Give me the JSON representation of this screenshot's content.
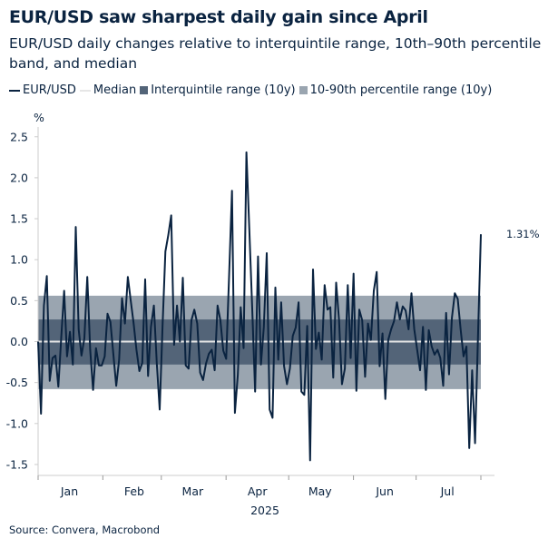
{
  "title": "EUR/USD saw sharpest daily gain since April",
  "subtitle": "EUR/USD daily changes relative to interquintile range, 10th–90th percentile band, and median",
  "source": "Source: Convera, Macrobond",
  "chart_data": {
    "type": "line",
    "unit_label": "%",
    "x_start": "2025-01-01",
    "x_end": "2025-08-01",
    "x_tick_labels": [
      "Jan",
      "Feb",
      "Mar",
      "Apr",
      "May",
      "Jun",
      "Jul"
    ],
    "x_year_label": "2025",
    "ylim": [
      -1.6,
      2.6
    ],
    "y_ticks": [
      -1.5,
      -1.0,
      -0.5,
      0.0,
      0.5,
      1.0,
      1.5,
      2.0,
      2.5
    ],
    "y_tick_labels": [
      "-1.5",
      "-1.0",
      "-0.5",
      "0.0",
      "0.5",
      "1.0",
      "1.5",
      "2.0",
      "2.5"
    ],
    "legend": [
      {
        "name": "EUR/USD",
        "color": "#0a2340",
        "kind": "line"
      },
      {
        "name": "Median",
        "color": "#e6e6e6",
        "kind": "line"
      },
      {
        "name": "Interquintile range (10y)",
        "color": "#536478",
        "kind": "box"
      },
      {
        "name": "10-90th percentile range (10y)",
        "color": "#9aa5b0",
        "kind": "box"
      }
    ],
    "legend_placement": "top",
    "median": 0.0,
    "interquintile_range": [
      -0.28,
      0.27
    ],
    "p10_p90_range": [
      -0.58,
      0.56
    ],
    "last_value_label": "1.31%",
    "series": [
      {
        "name": "EUR/USD",
        "color": "#0a2340",
        "values": [
          0,
          -0.88,
          0.44,
          0.8,
          -0.48,
          -0.2,
          -0.17,
          -0.55,
          0.05,
          0.62,
          -0.18,
          0.12,
          -0.28,
          1.4,
          0.15,
          -0.17,
          0.04,
          0.79,
          -0.1,
          -0.59,
          -0.08,
          -0.29,
          -0.29,
          -0.18,
          0.34,
          0.24,
          -0.15,
          -0.54,
          -0.22,
          0.53,
          0.22,
          0.79,
          0.5,
          0.22,
          -0.1,
          -0.36,
          -0.26,
          0.76,
          -0.42,
          0.18,
          0.44,
          -0.26,
          -0.83,
          0.2,
          1.1,
          1.3,
          1.54,
          -0.04,
          0.44,
          0,
          0.78,
          -0.29,
          -0.33,
          0.26,
          0.39,
          0.22,
          -0.38,
          -0.47,
          -0.27,
          -0.15,
          -0.1,
          -0.35,
          0.44,
          0.26,
          -0.11,
          -0.21,
          0.8,
          1.84,
          -0.87,
          -0.41,
          0.42,
          -0.08,
          2.31,
          1.37,
          0.4,
          -0.61,
          1.04,
          -0.28,
          0.18,
          1.08,
          -0.83,
          -0.93,
          0.66,
          -0.22,
          0.48,
          -0.3,
          -0.52,
          -0.33,
          0.07,
          0.17,
          0.48,
          -0.61,
          -0.65,
          0.19,
          -1.45,
          0.88,
          -0.09,
          0.11,
          -0.22,
          0.69,
          0.39,
          0.42,
          -0.44,
          0.72,
          0.26,
          -0.52,
          -0.33,
          0.69,
          -0.2,
          0.83,
          -0.6,
          0.39,
          0.26,
          -0.43,
          0.22,
          0.02,
          0.62,
          0.85,
          -0.3,
          0.1,
          -0.7,
          0.02,
          0.15,
          0.25,
          0.48,
          0.27,
          0.43,
          0.38,
          0.15,
          0.59,
          0.15,
          -0.1,
          -0.35,
          0.18,
          -0.59,
          0.14,
          -0.06,
          -0.16,
          -0.1,
          -0.2,
          -0.54,
          0.35,
          -0.4,
          0.29,
          0.59,
          0.52,
          0.15,
          -0.18,
          -0.06,
          -1.3,
          -0.35,
          -1.24,
          0.05,
          1.31
        ]
      }
    ]
  }
}
